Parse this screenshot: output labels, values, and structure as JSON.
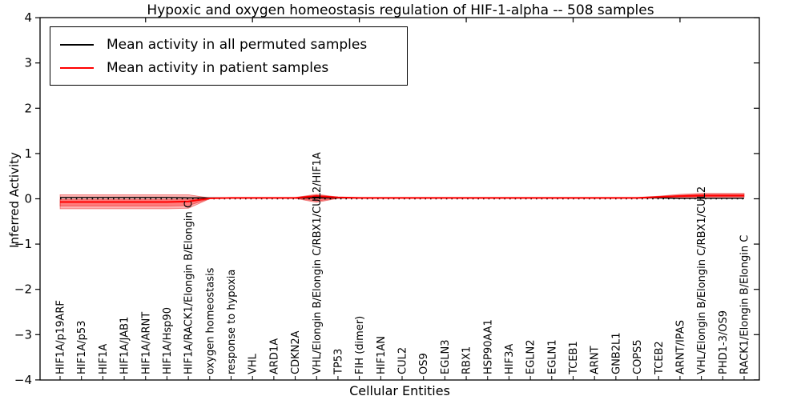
{
  "title": "Hypoxic and oxygen homeostasis regulation of HIF-1-alpha -- 508 samples",
  "legend": {
    "position": "upper left",
    "items": [
      {
        "label": "Mean activity in all permuted samples",
        "color": "#000000"
      },
      {
        "label": "Mean activity in patient samples",
        "color": "#ff0000"
      }
    ]
  },
  "axes": {
    "xlabel": "Cellular Entities",
    "ylabel": "Inferred Activity",
    "ytick_labels": [
      "4",
      "3",
      "2",
      "1",
      "0",
      "−1",
      "−2",
      "−3",
      "−4"
    ]
  },
  "colors": {
    "permuted_line": "#000000",
    "patient_line": "#ff0000",
    "band_fill": "rgba(255,0,0,0.30)",
    "band_edge": "rgba(220,0,0,0.45)",
    "zero_line": "#000000",
    "frame": "#000000"
  },
  "chart_data": {
    "type": "line",
    "title": "Hypoxic and oxygen homeostasis regulation of HIF-1-alpha -- 508 samples",
    "xlabel": "Cellular Entities",
    "ylabel": "Inferred Activity",
    "ylim": [
      -4,
      4
    ],
    "yticks": [
      4,
      3,
      2,
      1,
      0,
      -1,
      -2,
      -3,
      -4
    ],
    "grid": false,
    "zero_reference_line": true,
    "legend_position": "upper left",
    "categories": [
      "HIF1A/p19ARF",
      "HIF1A/p53",
      "HIF1A",
      "HIF1A/JAB1",
      "HIF1A/ARNT",
      "HIF1A/Hsp90",
      "HIF1A/RACK1/Elongin B/Elongin C",
      "oxygen homeostasis",
      "response to hypoxia",
      "VHL",
      "ARD1A",
      "CDKN2A",
      "VHL/Elongin B/Elongin C/RBX1/CUL2/HIF1A",
      "TP53",
      "FIH (dimer)",
      "HIF1AN",
      "CUL2",
      "OS9",
      "EGLN3",
      "RBX1",
      "HSP90AA1",
      "HIF3A",
      "EGLN2",
      "EGLN1",
      "TCEB1",
      "ARNT",
      "GNB2L1",
      "COPS5",
      "TCEB2",
      "ARNT/IPAS",
      "VHL/Elongin B/Elongin C/RBX1/CUL2",
      "PHD1-3/OS9",
      "RACK1/Elongin B/Elongin C"
    ],
    "series": [
      {
        "name": "Mean activity in all permuted samples",
        "color": "#000000",
        "values": [
          0.03,
          0.03,
          0.03,
          0.03,
          0.03,
          0.03,
          0.02,
          0.02,
          0.02,
          0.02,
          0.02,
          0.02,
          0.02,
          0.02,
          0.02,
          0.02,
          0.02,
          0.02,
          0.02,
          0.02,
          0.02,
          0.02,
          0.02,
          0.02,
          0.02,
          0.02,
          0.02,
          0.02,
          0.02,
          0.01,
          0.01,
          0.01,
          0.01
        ]
      },
      {
        "name": "Mean activity in patient samples",
        "color": "#ff0000",
        "values": [
          -0.07,
          -0.07,
          -0.07,
          -0.07,
          -0.07,
          -0.07,
          -0.06,
          0.01,
          0.02,
          0.02,
          0.02,
          0.02,
          0.06,
          0.03,
          0.02,
          0.02,
          0.02,
          0.02,
          0.02,
          0.02,
          0.02,
          0.02,
          0.02,
          0.02,
          0.02,
          0.02,
          0.02,
          0.02,
          0.04,
          0.06,
          0.07,
          0.07,
          0.07
        ]
      }
    ],
    "bands": [
      {
        "name": "patient activity spread (outer)",
        "upper": [
          0.09,
          0.09,
          0.09,
          0.09,
          0.09,
          0.09,
          0.09,
          0.02,
          0.03,
          0.03,
          0.03,
          0.03,
          0.1,
          0.04,
          0.03,
          0.03,
          0.03,
          0.03,
          0.03,
          0.03,
          0.03,
          0.03,
          0.03,
          0.03,
          0.03,
          0.03,
          0.03,
          0.03,
          0.06,
          0.1,
          0.12,
          0.12,
          0.12
        ],
        "lower": [
          -0.22,
          -0.22,
          -0.22,
          -0.22,
          -0.22,
          -0.22,
          -0.21,
          0.0,
          0.01,
          0.01,
          0.01,
          0.01,
          -0.08,
          0.01,
          0.01,
          0.01,
          0.01,
          0.01,
          0.01,
          0.01,
          0.01,
          0.01,
          0.01,
          0.01,
          0.01,
          0.01,
          0.01,
          0.01,
          0.02,
          0.02,
          0.03,
          0.03,
          0.03
        ]
      },
      {
        "name": "patient activity spread (inner)",
        "upper": [
          -0.02,
          -0.02,
          -0.02,
          -0.02,
          -0.02,
          -0.02,
          -0.02,
          0.015,
          0.025,
          0.025,
          0.025,
          0.025,
          0.08,
          0.03,
          0.025,
          0.025,
          0.025,
          0.025,
          0.025,
          0.025,
          0.025,
          0.025,
          0.025,
          0.025,
          0.025,
          0.025,
          0.025,
          0.025,
          0.05,
          0.08,
          0.1,
          0.1,
          0.1
        ],
        "lower": [
          -0.16,
          -0.16,
          -0.16,
          -0.16,
          -0.16,
          -0.16,
          -0.15,
          0.005,
          0.015,
          0.015,
          0.015,
          0.015,
          -0.05,
          0.015,
          0.015,
          0.015,
          0.015,
          0.015,
          0.015,
          0.015,
          0.015,
          0.015,
          0.015,
          0.015,
          0.015,
          0.015,
          0.015,
          0.015,
          0.03,
          0.04,
          0.05,
          0.05,
          0.05
        ]
      }
    ]
  }
}
